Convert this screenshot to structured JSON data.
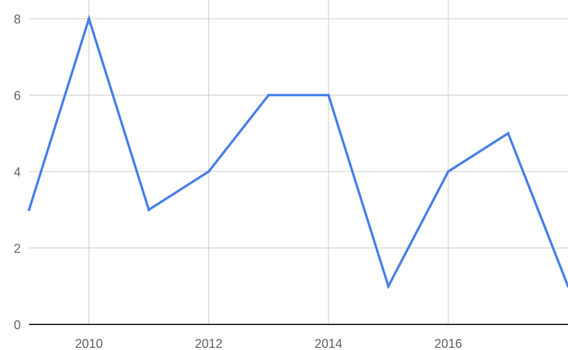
{
  "chart_data": {
    "type": "line",
    "title": "",
    "xlabel": "",
    "ylabel": "",
    "x": [
      2009,
      2010,
      2011,
      2012,
      2013,
      2014,
      2015,
      2016,
      2017,
      2018
    ],
    "series": [
      {
        "values": [
          3,
          8,
          3,
          4,
          6,
          6,
          1,
          4,
          5,
          1
        ]
      }
    ],
    "xlim": [
      2009,
      2018
    ],
    "ylim": [
      0,
      8
    ],
    "x_ticks": [
      "2010",
      "2012",
      "2014",
      "2016"
    ],
    "y_ticks": [
      "0",
      "2",
      "4",
      "6",
      "8"
    ],
    "grid": true,
    "legend": "none",
    "colors": {
      "line": "#4a80e8",
      "grid": "#cccccc",
      "baseline": "#333333",
      "tick_text": "#666666"
    }
  }
}
